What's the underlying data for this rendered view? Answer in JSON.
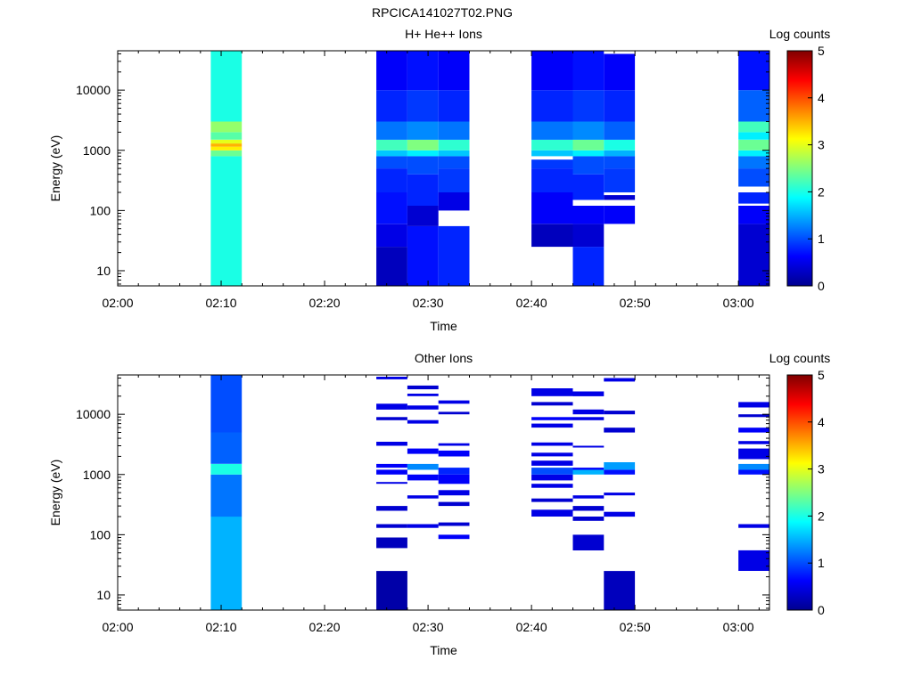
{
  "figure_title": "RPCICA141027T02.PNG",
  "chart_data": [
    {
      "type": "heatmap",
      "title": "H+ He++ Ions",
      "xlabel": "Time",
      "ylabel": "Energy (eV)",
      "x_ticks": [
        "02:00",
        "02:10",
        "02:20",
        "02:30",
        "02:40",
        "02:50",
        "03:00"
      ],
      "x_range_minutes": [
        0,
        63
      ],
      "y_scale": "log",
      "y_ticks": [
        "10",
        "100",
        "1000",
        "10000"
      ],
      "y_range": [
        5.6,
        45000
      ],
      "colorbar": {
        "label": "Log counts",
        "ticks": [
          "0",
          "1",
          "2",
          "3",
          "4",
          "5"
        ],
        "range": [
          0,
          5
        ],
        "colormap": "jet"
      },
      "columns": [
        {
          "t_start": "02:09",
          "t_end": "02:12",
          "emin": 5.6,
          "emax": 45000,
          "bands": [
            [
              5.6,
              800,
              2.0
            ],
            [
              800,
              1000,
              2.4
            ],
            [
              1000,
              1150,
              3.2
            ],
            [
              1150,
              1300,
              3.5
            ],
            [
              1300,
              1500,
              3.0
            ],
            [
              1500,
              2000,
              2.3
            ],
            [
              2000,
              3000,
              2.6
            ],
            [
              3000,
              45000,
              2.0
            ]
          ]
        },
        {
          "t_start": "02:25",
          "t_end": "02:28",
          "emin": 5.6,
          "emax": 45000,
          "bands": [
            [
              5.6,
              25,
              0.3
            ],
            [
              25,
              60,
              0.5
            ],
            [
              60,
              200,
              0.7
            ],
            [
              200,
              500,
              0.8
            ],
            [
              500,
              800,
              1.0
            ],
            [
              800,
              1000,
              1.6
            ],
            [
              1000,
              1500,
              2.2
            ],
            [
              1500,
              3000,
              1.2
            ],
            [
              3000,
              10000,
              0.8
            ],
            [
              10000,
              45000,
              0.6
            ]
          ]
        },
        {
          "t_start": "02:28",
          "t_end": "02:31",
          "emin": 5.6,
          "emax": 45000,
          "bands": [
            [
              5.6,
              55,
              0.7
            ],
            [
              55,
              120,
              0.4
            ],
            [
              120,
              400,
              0.8
            ],
            [
              400,
              800,
              1.0
            ],
            [
              800,
              1000,
              1.8
            ],
            [
              1000,
              1500,
              2.5
            ],
            [
              1500,
              3000,
              1.3
            ],
            [
              3000,
              10000,
              0.9
            ],
            [
              10000,
              45000,
              0.7
            ]
          ]
        },
        {
          "t_start": "02:31",
          "t_end": "02:34",
          "emin": 5.6,
          "emax": 45000,
          "bands": [
            [
              5.6,
              55,
              0.8
            ],
            [
              100,
              200,
              0.5
            ],
            [
              200,
              500,
              0.9
            ],
            [
              500,
              800,
              1.0
            ],
            [
              800,
              1000,
              1.6
            ],
            [
              1000,
              1500,
              2.1
            ],
            [
              1500,
              3000,
              1.2
            ],
            [
              3000,
              10000,
              0.8
            ],
            [
              10000,
              45000,
              0.6
            ]
          ]
        },
        {
          "t_start": "02:40",
          "t_end": "02:44",
          "emin": 25,
          "emax": 45000,
          "bands": [
            [
              25,
              60,
              0.3
            ],
            [
              60,
              200,
              0.6
            ],
            [
              200,
              500,
              0.8
            ],
            [
              500,
              700,
              0.9
            ],
            [
              800,
              1000,
              1.6
            ],
            [
              1000,
              1500,
              2.1
            ],
            [
              1500,
              3000,
              1.2
            ],
            [
              3000,
              10000,
              0.8
            ],
            [
              10000,
              45000,
              0.6
            ]
          ]
        },
        {
          "t_start": "02:44",
          "t_end": "02:47",
          "emin": 5.6,
          "emax": 45000,
          "bands": [
            [
              5.6,
              25,
              0.8
            ],
            [
              25,
              60,
              0.4
            ],
            [
              60,
              120,
              0.6
            ],
            [
              150,
              400,
              0.8
            ],
            [
              400,
              800,
              1.0
            ],
            [
              800,
              1000,
              1.8
            ],
            [
              1000,
              1500,
              2.4
            ],
            [
              1500,
              3000,
              1.3
            ],
            [
              3000,
              10000,
              0.9
            ],
            [
              10000,
              45000,
              0.7
            ]
          ]
        },
        {
          "t_start": "02:47",
          "t_end": "02:50",
          "emin": 60,
          "emax": 40000,
          "bands": [
            [
              60,
              120,
              0.6
            ],
            [
              150,
              180,
              0.4
            ],
            [
              200,
              500,
              0.9
            ],
            [
              500,
              800,
              1.0
            ],
            [
              800,
              1000,
              1.5
            ],
            [
              1000,
              1500,
              2.0
            ],
            [
              1500,
              3000,
              1.1
            ],
            [
              3000,
              10000,
              0.8
            ],
            [
              10000,
              40000,
              0.6
            ]
          ]
        },
        {
          "t_start": "03:00",
          "t_end": "03:03",
          "emin": 5.6,
          "emax": 45000,
          "bands": [
            [
              5.6,
              60,
              0.4
            ],
            [
              60,
              120,
              0.6
            ],
            [
              130,
              200,
              0.8
            ],
            [
              250,
              500,
              1.0
            ],
            [
              500,
              800,
              1.2
            ],
            [
              800,
              1000,
              1.8
            ],
            [
              1000,
              1500,
              2.4
            ],
            [
              1500,
              2000,
              1.8
            ],
            [
              2000,
              3000,
              2.2
            ],
            [
              3000,
              10000,
              1.1
            ],
            [
              10000,
              45000,
              0.7
            ]
          ]
        }
      ]
    },
    {
      "type": "heatmap",
      "title": "Other Ions",
      "xlabel": "Time",
      "ylabel": "Energy (eV)",
      "x_ticks": [
        "02:00",
        "02:10",
        "02:20",
        "02:30",
        "02:40",
        "02:50",
        "03:00"
      ],
      "x_range_minutes": [
        0,
        63
      ],
      "y_scale": "log",
      "y_ticks": [
        "10",
        "100",
        "1000",
        "10000"
      ],
      "y_range": [
        5.6,
        45000
      ],
      "colorbar": {
        "label": "Log counts",
        "ticks": [
          "0",
          "1",
          "2",
          "3",
          "4",
          "5"
        ],
        "range": [
          0,
          5
        ],
        "colormap": "jet"
      },
      "columns": [
        {
          "t_start": "02:09",
          "t_end": "02:12",
          "emin": 5.6,
          "emax": 45000,
          "bands": [
            [
              5.6,
              200,
              1.5
            ],
            [
              200,
              1000,
              1.2
            ],
            [
              1000,
              1500,
              2.0
            ],
            [
              1500,
              5000,
              1.1
            ],
            [
              5000,
              45000,
              1.0
            ]
          ]
        },
        {
          "t_start": "02:25",
          "t_end": "02:28",
          "emin": 5.6,
          "emax": 45000,
          "bands": [
            [
              5.6,
              25,
              0.2
            ],
            [
              60,
              90,
              0.3
            ],
            [
              130,
              150,
              0.4
            ],
            [
              250,
              300,
              0.4
            ],
            [
              700,
              750,
              0.5
            ],
            [
              1000,
              1200,
              0.6
            ],
            [
              1300,
              1500,
              0.6
            ],
            [
              3000,
              3500,
              0.5
            ],
            [
              8000,
              9000,
              0.4
            ],
            [
              12000,
              15000,
              0.5
            ],
            [
              38000,
              42000,
              0.5
            ]
          ]
        },
        {
          "t_start": "02:28",
          "t_end": "02:31",
          "emin": 130,
          "emax": 30000,
          "bands": [
            [
              130,
              150,
              0.5
            ],
            [
              400,
              450,
              0.5
            ],
            [
              800,
              1000,
              0.6
            ],
            [
              1200,
              1500,
              1.3
            ],
            [
              2200,
              2700,
              0.6
            ],
            [
              7000,
              8000,
              0.5
            ],
            [
              12000,
              14000,
              0.5
            ],
            [
              20000,
              22000,
              0.5
            ],
            [
              26000,
              30000,
              0.4
            ]
          ]
        },
        {
          "t_start": "02:31",
          "t_end": "02:34",
          "emin": 85,
          "emax": 18000,
          "bands": [
            [
              85,
              100,
              0.6
            ],
            [
              140,
              160,
              0.4
            ],
            [
              300,
              350,
              0.4
            ],
            [
              450,
              550,
              0.5
            ],
            [
              700,
              1000,
              0.6
            ],
            [
              1000,
              1300,
              0.8
            ],
            [
              2000,
              2500,
              0.6
            ],
            [
              3000,
              3300,
              0.5
            ],
            [
              10000,
              11000,
              0.4
            ],
            [
              15000,
              17000,
              0.5
            ]
          ]
        },
        {
          "t_start": "02:40",
          "t_end": "02:44",
          "emin": 200,
          "emax": 27000,
          "bands": [
            [
              200,
              260,
              0.5
            ],
            [
              350,
              400,
              0.4
            ],
            [
              600,
              700,
              0.5
            ],
            [
              800,
              1000,
              0.5
            ],
            [
              1000,
              1300,
              1.0
            ],
            [
              1400,
              1700,
              0.5
            ],
            [
              2000,
              2300,
              0.5
            ],
            [
              3000,
              3400,
              0.5
            ],
            [
              6000,
              7000,
              0.5
            ],
            [
              8000,
              9000,
              0.6
            ],
            [
              14000,
              16000,
              0.4
            ],
            [
              20000,
              27000,
              0.5
            ]
          ]
        },
        {
          "t_start": "02:44",
          "t_end": "02:47",
          "emin": 55,
          "emax": 24000,
          "bands": [
            [
              55,
              100,
              0.4
            ],
            [
              170,
              200,
              0.4
            ],
            [
              250,
              300,
              0.4
            ],
            [
              400,
              450,
              0.5
            ],
            [
              1000,
              1200,
              1.5
            ],
            [
              1200,
              1300,
              0.6
            ],
            [
              2800,
              3000,
              0.5
            ],
            [
              8000,
              9000,
              0.5
            ],
            [
              10000,
              12000,
              0.5
            ],
            [
              20000,
              24000,
              0.5
            ]
          ]
        },
        {
          "t_start": "02:47",
          "t_end": "02:50",
          "emin": 5.6,
          "emax": 40000,
          "bands": [
            [
              5.6,
              25,
              0.3
            ],
            [
              200,
              240,
              0.5
            ],
            [
              450,
              500,
              0.5
            ],
            [
              1000,
              1200,
              0.7
            ],
            [
              1200,
              1600,
              1.4
            ],
            [
              5000,
              6000,
              0.4
            ],
            [
              10000,
              11500,
              0.4
            ],
            [
              35000,
              40000,
              0.5
            ]
          ]
        },
        {
          "t_start": "03:00",
          "t_end": "03:03",
          "emin": 25,
          "emax": 16000,
          "bands": [
            [
              25,
              55,
              0.5
            ],
            [
              130,
              150,
              0.5
            ],
            [
              1000,
              1200,
              0.7
            ],
            [
              1200,
              1500,
              1.3
            ],
            [
              1800,
              2700,
              0.5
            ],
            [
              3200,
              3600,
              0.5
            ],
            [
              5000,
              6000,
              0.6
            ],
            [
              9000,
              10000,
              0.4
            ],
            [
              13000,
              16000,
              0.5
            ]
          ]
        }
      ]
    }
  ]
}
